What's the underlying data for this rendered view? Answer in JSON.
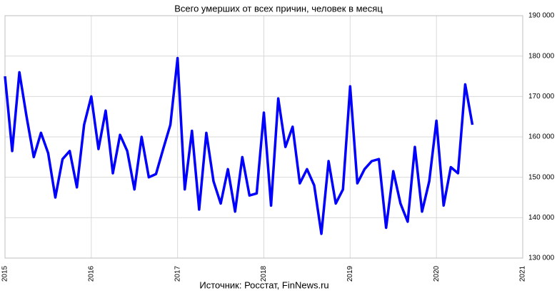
{
  "chart_data": {
    "type": "line",
    "title": "Всего умерших от всех причин, человек в месяц",
    "source": "Источник: Росстат, FinNews.ru",
    "x": [
      2015,
      2015.0833,
      2015.1667,
      2015.25,
      2015.3333,
      2015.4167,
      2015.5,
      2015.5833,
      2015.6667,
      2015.75,
      2015.8333,
      2015.9167,
      2016,
      2016.0833,
      2016.1667,
      2016.25,
      2016.3333,
      2016.4167,
      2016.5,
      2016.5833,
      2016.6667,
      2016.75,
      2016.8333,
      2016.9167,
      2017,
      2017.0833,
      2017.1667,
      2017.25,
      2017.3333,
      2017.4167,
      2017.5,
      2017.5833,
      2017.6667,
      2017.75,
      2017.8333,
      2017.9167,
      2018,
      2018.0833,
      2018.1667,
      2018.25,
      2018.3333,
      2018.4167,
      2018.5,
      2018.5833,
      2018.6667,
      2018.75,
      2018.8333,
      2018.9167,
      2019,
      2019.0833,
      2019.1667,
      2019.25,
      2019.3333,
      2019.4167,
      2019.5,
      2019.5833,
      2019.6667,
      2019.75,
      2019.8333,
      2019.9167,
      2020,
      2020.0833,
      2020.1667,
      2020.25,
      2020.3333,
      2020.4167
    ],
    "series": [
      {
        "color": "#0000ff",
        "values": [
          175000,
          156500,
          176000,
          165000,
          155000,
          161000,
          156000,
          145000,
          154500,
          156500,
          147500,
          163000,
          170000,
          157000,
          166500,
          151000,
          160500,
          156500,
          147000,
          160000,
          150000,
          150800,
          157000,
          163000,
          179500,
          147000,
          161500,
          142000,
          161000,
          149000,
          143500,
          152000,
          141500,
          155000,
          145500,
          146000,
          166000,
          143000,
          169500,
          157500,
          162500,
          148500,
          152000,
          148000,
          136000,
          154000,
          143500,
          147000,
          172500,
          148500,
          152000,
          154000,
          154500,
          137500,
          151500,
          143500,
          139000,
          157500,
          141500,
          149000,
          164000,
          143000,
          152500,
          151000,
          173000,
          163000
        ]
      }
    ],
    "xlim": [
      2015,
      2021
    ],
    "xticks": [
      2015,
      2016,
      2017,
      2018,
      2019,
      2020,
      2021
    ],
    "ylim": [
      130000,
      190000
    ],
    "yticks": [
      {
        "value": 130000,
        "label": "130 000"
      },
      {
        "value": 140000,
        "label": "140 000"
      },
      {
        "value": 150000,
        "label": "150 000"
      },
      {
        "value": 160000,
        "label": "160 000"
      },
      {
        "value": 170000,
        "label": "170 000"
      },
      {
        "value": 180000,
        "label": "180 000"
      },
      {
        "value": 190000,
        "label": "190 000"
      }
    ],
    "grid": true
  }
}
